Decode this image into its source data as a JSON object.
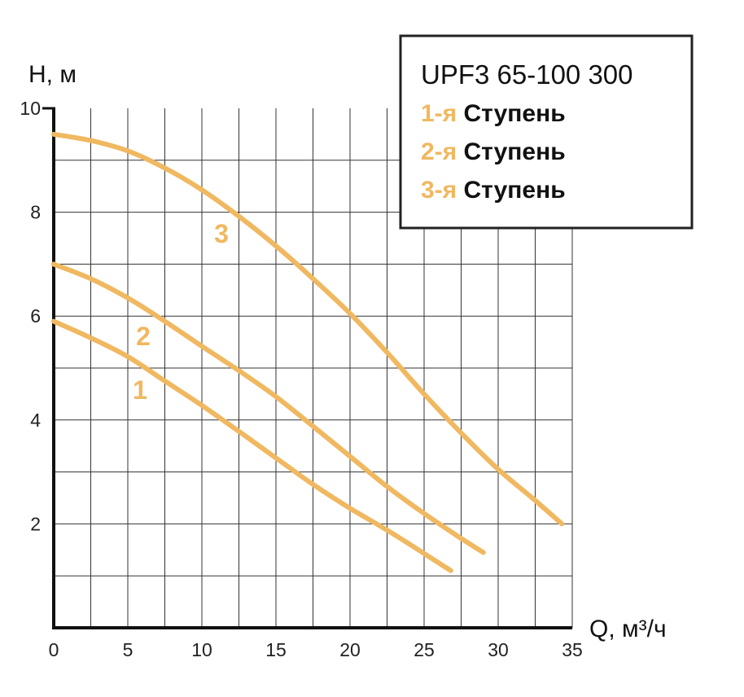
{
  "chart_data": {
    "type": "line",
    "title": "UPF3 65-100 300",
    "xlabel": "Q, м³/ч",
    "ylabel": "H, м",
    "xlim": [
      0,
      35
    ],
    "ylim": [
      0,
      10
    ],
    "x_ticks": [
      0,
      5,
      10,
      15,
      20,
      25,
      30,
      35
    ],
    "y_ticks": [
      2,
      4,
      6,
      8,
      10
    ],
    "x_grid_step": 2.5,
    "y_grid_step": 1,
    "grid": true,
    "legend": "top-right",
    "line_color": "#F0B860",
    "series": [
      {
        "name": "1-я Ступень",
        "prefix": "1-я",
        "word": "Ступень",
        "curve_label": "1",
        "x": [
          0,
          2.5,
          5,
          7.5,
          10,
          12.5,
          15,
          17.5,
          20,
          22.5,
          25,
          26.8
        ],
        "y": [
          5.9,
          5.58,
          5.22,
          4.75,
          4.28,
          3.78,
          3.27,
          2.76,
          2.3,
          1.88,
          1.43,
          1.1
        ]
      },
      {
        "name": "2-я Ступень",
        "prefix": "2-я",
        "word": "Ступень",
        "curve_label": "2",
        "x": [
          0,
          2.5,
          5,
          7.5,
          10,
          12.5,
          15,
          17.5,
          20,
          22.5,
          25,
          27.5,
          29
        ],
        "y": [
          7.0,
          6.72,
          6.35,
          5.9,
          5.42,
          4.95,
          4.45,
          3.88,
          3.3,
          2.72,
          2.2,
          1.72,
          1.45
        ]
      },
      {
        "name": "3-я Ступень",
        "prefix": "3-я",
        "word": "Ступень",
        "curve_label": "3",
        "x": [
          0,
          2.5,
          5,
          7.5,
          10,
          12.5,
          15,
          17.5,
          20,
          22.5,
          25,
          27.5,
          30,
          32.5,
          34.3
        ],
        "y": [
          9.5,
          9.38,
          9.18,
          8.85,
          8.43,
          7.92,
          7.35,
          6.72,
          6.05,
          5.3,
          4.5,
          3.75,
          3.05,
          2.45,
          2.0
        ]
      }
    ]
  }
}
